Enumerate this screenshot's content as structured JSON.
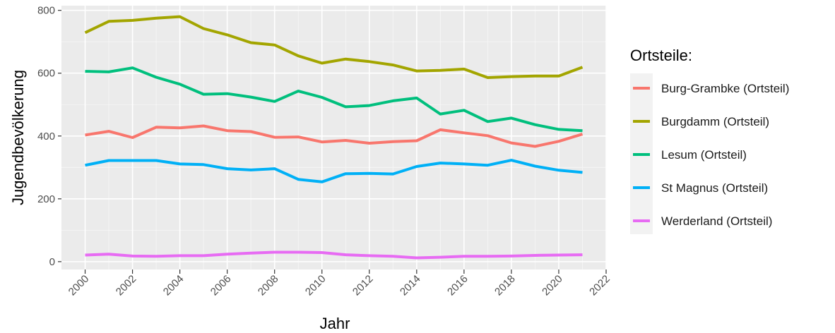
{
  "chart_data": {
    "type": "line",
    "xlabel": "Jahr",
    "ylabel": "Jugendbevölkerung",
    "xlim": [
      1999,
      2022
    ],
    "ylim": [
      -25,
      815
    ],
    "x_ticks": [
      2000,
      2002,
      2004,
      2006,
      2008,
      2010,
      2012,
      2014,
      2016,
      2018,
      2020,
      2022
    ],
    "y_ticks": [
      0,
      200,
      400,
      600,
      800
    ],
    "grid": true,
    "legend": {
      "title": "Ortsteile:",
      "position": "right"
    },
    "x": [
      2000,
      2001,
      2002,
      2003,
      2004,
      2005,
      2006,
      2007,
      2008,
      2009,
      2010,
      2011,
      2012,
      2013,
      2014,
      2015,
      2016,
      2017,
      2018,
      2019,
      2020,
      2021
    ],
    "series": [
      {
        "name": "Burg-Grambke (Ortsteil)",
        "color": "#F8766D",
        "values": [
          403,
          415,
          395,
          428,
          426,
          432,
          417,
          414,
          396,
          397,
          381,
          386,
          377,
          382,
          385,
          420,
          410,
          401,
          378,
          367,
          383,
          406
        ]
      },
      {
        "name": "Burgdamm (Ortsteil)",
        "color": "#A3A500",
        "values": [
          729,
          765,
          768,
          775,
          780,
          742,
          722,
          697,
          690,
          655,
          632,
          645,
          637,
          626,
          607,
          609,
          613,
          586,
          589,
          591,
          591,
          619
        ]
      },
      {
        "name": "Lesum (Ortsteil)",
        "color": "#00BF7D",
        "values": [
          606,
          604,
          617,
          587,
          565,
          533,
          535,
          524,
          510,
          543,
          523,
          493,
          497,
          512,
          521,
          470,
          482,
          446,
          457,
          436,
          421,
          417
        ]
      },
      {
        "name": "St Magnus (Ortsteil)",
        "color": "#00B0F6",
        "values": [
          307,
          322,
          322,
          322,
          311,
          309,
          296,
          292,
          296,
          262,
          254,
          280,
          281,
          279,
          303,
          314,
          311,
          307,
          323,
          304,
          291,
          284
        ]
      },
      {
        "name": "Werderland (Ortsteil)",
        "color": "#E76BF3",
        "values": [
          21,
          24,
          18,
          17,
          19,
          19,
          24,
          27,
          30,
          30,
          29,
          22,
          19,
          17,
          12,
          14,
          17,
          17,
          18,
          20,
          21,
          22
        ]
      }
    ]
  }
}
